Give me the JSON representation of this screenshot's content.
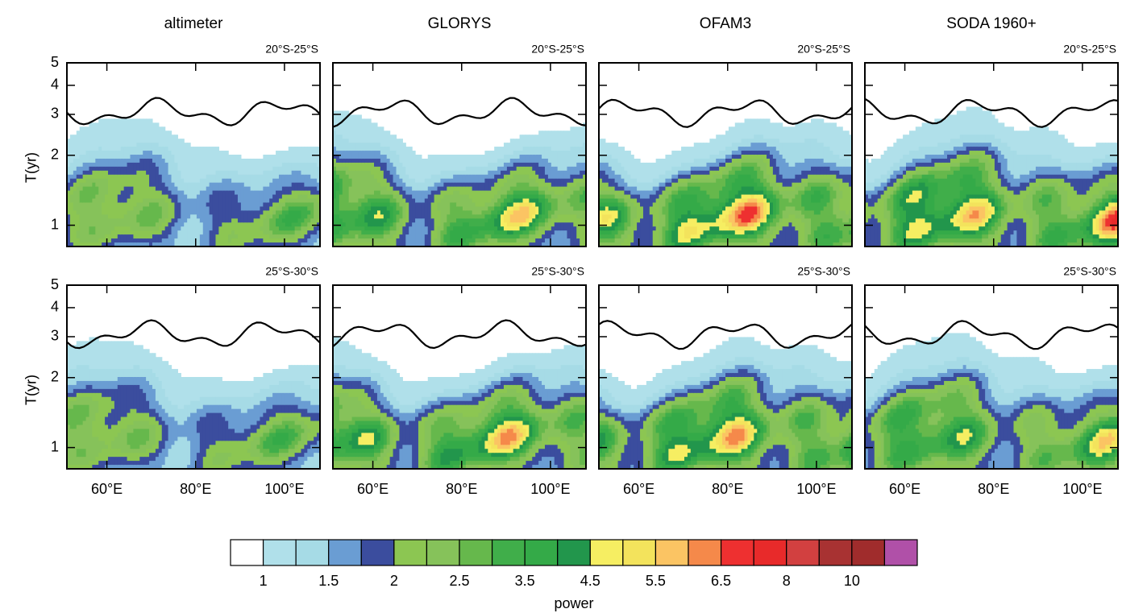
{
  "chart_data": [
    {
      "type": "contour",
      "title": "altimeter",
      "subtitle": "20°S-25°S",
      "ylabel": "T(yr)",
      "xlim": [
        51,
        108
      ],
      "ylim": [
        0.81,
        5
      ],
      "xticks": [
        60,
        80,
        100
      ],
      "yticks": [
        1,
        2,
        3,
        4,
        5
      ],
      "ylog": true
    },
    {
      "type": "contour",
      "title": "GLORYS",
      "subtitle": "20°S-25°S",
      "xlim": [
        51,
        108
      ],
      "ylim": [
        0.81,
        5
      ],
      "xticks": [
        60,
        80,
        100
      ],
      "yticks": [
        1,
        2,
        3,
        4,
        5
      ],
      "ylog": true
    },
    {
      "type": "contour",
      "title": "OFAM3",
      "subtitle": "20°S-25°S",
      "xlim": [
        51,
        108
      ],
      "ylim": [
        0.81,
        5
      ],
      "xticks": [
        60,
        80,
        100
      ],
      "yticks": [
        1,
        2,
        3,
        4,
        5
      ],
      "ylog": true
    },
    {
      "type": "contour",
      "title": "SODA 1960+",
      "subtitle": "20°S-25°S",
      "xlim": [
        51,
        108
      ],
      "ylim": [
        0.81,
        5
      ],
      "xticks": [
        60,
        80,
        100
      ],
      "yticks": [
        1,
        2,
        3,
        4,
        5
      ],
      "ylog": true
    },
    {
      "type": "contour",
      "subtitle": "25°S-30°S",
      "ylabel": "T(yr)",
      "xlim": [
        51,
        108
      ],
      "ylim": [
        0.81,
        5
      ],
      "xticks": [
        {
          "value": 60,
          "label": "60°E"
        },
        {
          "value": 80,
          "label": "80°E"
        },
        {
          "value": 100,
          "label": "100°E"
        }
      ],
      "yticks": [
        1,
        2,
        3,
        4,
        5
      ],
      "ylog": true
    },
    {
      "type": "contour",
      "subtitle": "25°S-30°S",
      "xlim": [
        51,
        108
      ],
      "ylim": [
        0.81,
        5
      ],
      "xticks": [
        {
          "value": 60,
          "label": "60°E"
        },
        {
          "value": 80,
          "label": "80°E"
        },
        {
          "value": 100,
          "label": "100°E"
        }
      ],
      "yticks": [
        1,
        2,
        3,
        4,
        5
      ],
      "ylog": true
    },
    {
      "type": "contour",
      "subtitle": "25°S-30°S",
      "xlim": [
        51,
        108
      ],
      "ylim": [
        0.81,
        5
      ],
      "xticks": [
        {
          "value": 60,
          "label": "60°E"
        },
        {
          "value": 80,
          "label": "80°E"
        },
        {
          "value": 100,
          "label": "100°E"
        }
      ],
      "yticks": [
        1,
        2,
        3,
        4,
        5
      ],
      "ylog": true
    },
    {
      "type": "contour",
      "subtitle": "25°S-30°S",
      "xlim": [
        51,
        108
      ],
      "ylim": [
        0.81,
        5
      ],
      "xticks": [
        {
          "value": 60,
          "label": "60°E"
        },
        {
          "value": 80,
          "label": "80°E"
        },
        {
          "value": 100,
          "label": "100°E"
        }
      ],
      "yticks": [
        1,
        2,
        3,
        4,
        5
      ],
      "ylog": true
    },
    {
      "type": "colorbar",
      "label": "power",
      "levels": [
        1,
        1.5,
        2,
        2.5,
        3.5,
        4.5,
        5.5,
        6.5,
        8,
        10
      ],
      "colors": [
        "#ffffff",
        "#b0e0ea",
        "#a6dbe6",
        "#6a9dd3",
        "#3b4d9e",
        "#8cc652",
        "#86c25a",
        "#66b84c",
        "#40ae4a",
        "#34aa48",
        "#22964c",
        "#f6ee62",
        "#f3e35c",
        "#fbc463",
        "#f5894a",
        "#ee3030",
        "#e82a2a",
        "#d24040",
        "#a83232",
        "#a02c2c",
        "#b050a8"
      ]
    }
  ]
}
